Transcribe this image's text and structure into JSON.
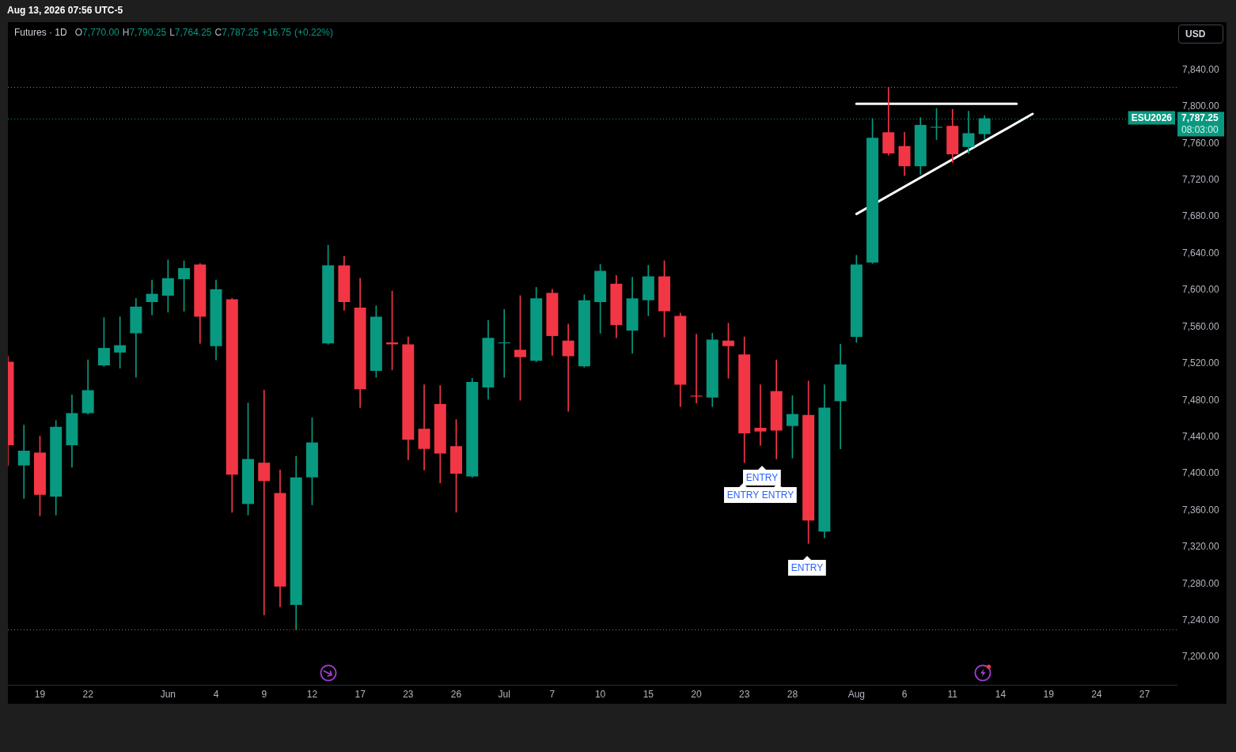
{
  "chart_data": {
    "type": "candlestick",
    "title": "Futures · 1D",
    "subtitle": "O7,770.00 H7,790.25 L7,764.25 C7,787.25 +16.75 (+0.22%)",
    "ylabel": "USD",
    "categories": [
      null,
      null,
      "19",
      null,
      null,
      "22",
      null,
      null,
      null,
      null,
      "Jun",
      null,
      null,
      "4",
      null,
      null,
      "9",
      null,
      null,
      "12",
      null,
      null,
      "17",
      null,
      null,
      "23",
      null,
      null,
      "26",
      null,
      null,
      "Jul",
      null,
      null,
      "7",
      null,
      null,
      "10",
      null,
      null,
      "15",
      null,
      null,
      "20",
      null,
      null,
      "23",
      null,
      null,
      "28",
      null,
      null,
      null,
      "Aug",
      null,
      null,
      "6",
      null,
      null,
      "11",
      null,
      null,
      "14",
      null,
      null,
      "19",
      null,
      null,
      "24",
      null,
      null,
      "27",
      null,
      null
    ],
    "series": [
      {
        "type": "candlestick",
        "ohlc": [
          [
            7522,
            7528,
            7409,
            7431
          ],
          [
            7409,
            7453,
            7373,
            7425
          ],
          [
            7423,
            7441,
            7354,
            7377
          ],
          [
            7375,
            7458,
            7355,
            7451
          ],
          [
            7431,
            7486,
            7407,
            7466
          ],
          [
            7466,
            7524,
            7465,
            7491
          ],
          [
            7518,
            7570,
            7517,
            7537
          ],
          [
            7532,
            7571,
            7515,
            7540
          ],
          [
            7553,
            7591,
            7505,
            7582
          ],
          [
            7587,
            7611,
            7573,
            7596
          ],
          [
            7594,
            7633,
            7576,
            7613
          ],
          [
            7612,
            7632,
            7577,
            7624
          ],
          [
            7628,
            7629,
            7542,
            7571
          ],
          [
            7539,
            7611,
            7524,
            7601
          ],
          [
            7590,
            7591,
            7358,
            7399
          ],
          [
            7367,
            7477,
            7355,
            7416
          ],
          [
            7412,
            7491,
            7246,
            7392
          ],
          [
            7379,
            7404,
            7255,
            7277
          ],
          [
            7257,
            7419,
            7230,
            7396
          ],
          [
            7396,
            7461,
            7366,
            7434
          ],
          [
            7542,
            7649,
            7541,
            7627
          ],
          [
            7627,
            7637,
            7578,
            7587
          ],
          [
            7581,
            7613,
            7472,
            7492
          ],
          [
            7512,
            7583,
            7505,
            7571
          ],
          [
            7543,
            7599,
            7513,
            7541
          ],
          [
            7541,
            7549,
            7415,
            7437
          ],
          [
            7449,
            7497,
            7404,
            7427
          ],
          [
            7476,
            7496,
            7390,
            7422
          ],
          [
            7430,
            7459,
            7358,
            7400
          ],
          [
            7397,
            7504,
            7396,
            7500
          ],
          [
            7494,
            7567,
            7481,
            7548
          ],
          [
            7542,
            7579,
            7505,
            7543
          ],
          [
            7535,
            7594,
            7480,
            7527
          ],
          [
            7523,
            7603,
            7522,
            7591
          ],
          [
            7597,
            7601,
            7529,
            7550
          ],
          [
            7545,
            7563,
            7468,
            7528
          ],
          [
            7517,
            7595,
            7516,
            7589
          ],
          [
            7587,
            7628,
            7553,
            7621
          ],
          [
            7607,
            7616,
            7548,
            7562
          ],
          [
            7556,
            7614,
            7531,
            7591
          ],
          [
            7589,
            7627,
            7572,
            7615
          ],
          [
            7615,
            7632,
            7549,
            7577
          ],
          [
            7572,
            7575,
            7473,
            7497
          ],
          [
            7485,
            7552,
            7477,
            7484
          ],
          [
            7483,
            7553,
            7473,
            7546
          ],
          [
            7545,
            7564,
            7504,
            7539
          ],
          [
            7530,
            7549,
            7412,
            7444
          ],
          [
            7450,
            7497,
            7431,
            7446
          ],
          [
            7490,
            7524,
            7416,
            7447
          ],
          [
            7452,
            7485,
            7417,
            7465
          ],
          [
            7464,
            7501,
            7324,
            7349
          ],
          [
            7337,
            7497,
            7330,
            7472
          ],
          [
            7479,
            7541,
            7427,
            7519
          ],
          [
            7549,
            7638,
            7543,
            7628
          ],
          [
            7630,
            7787,
            7629,
            7766
          ],
          [
            7772,
            7821,
            7747,
            7749
          ],
          [
            7757,
            7772,
            7725,
            7735
          ],
          [
            7735,
            7788,
            7726,
            7780
          ],
          [
            7777,
            7798,
            7764,
            7778
          ],
          [
            7779,
            7797,
            7739,
            7748
          ],
          [
            7756,
            7795,
            7749,
            7771
          ],
          [
            7770,
            7790.25,
            7764.25,
            7787.25
          ],
          null,
          null,
          null,
          null,
          null,
          null,
          null,
          null,
          null,
          null,
          null,
          null
        ],
        "colors": [
          "#f23645",
          "#089981",
          "#f23645",
          "#089981",
          "#089981",
          "#089981",
          "#089981",
          "#089981",
          "#089981",
          "#089981",
          "#089981",
          "#089981",
          "#f23645",
          "#089981",
          "#f23645",
          "#089981",
          "#f23645",
          "#f23645",
          "#089981",
          "#089981",
          "#089981",
          "#f23645",
          "#f23645",
          "#089981",
          "#f23645",
          "#f23645",
          "#f23645",
          "#f23645",
          "#f23645",
          "#089981",
          "#089981",
          "#089981",
          "#f23645",
          "#089981",
          "#f23645",
          "#f23645",
          "#089981",
          "#089981",
          "#f23645",
          "#089981",
          "#089981",
          "#f23645",
          "#f23645",
          "#f23645",
          "#089981",
          "#f23645",
          "#f23645",
          "#f23645",
          "#f23645",
          "#089981",
          "#f23645",
          "#089981",
          "#089981",
          "#089981",
          "#089981",
          "#f23645",
          "#f23645",
          "#089981",
          "#089981",
          "#f23645",
          "#089981",
          "#089981",
          null,
          null,
          null,
          null,
          null,
          null,
          null,
          null,
          null,
          null,
          null,
          null
        ]
      },
      {
        "type": "line",
        "values": [
          null,
          null,
          null,
          null,
          null,
          null,
          null,
          null,
          null,
          null,
          null,
          null,
          null,
          null,
          null,
          null,
          null,
          null,
          null,
          null,
          null,
          null,
          null,
          null,
          null,
          null,
          null,
          null,
          null,
          null,
          null,
          null,
          null,
          null,
          null,
          null,
          null,
          null,
          null,
          null,
          null,
          null,
          null,
          null,
          null,
          null,
          null,
          null,
          null,
          null,
          null,
          null,
          null,
          7803,
          null,
          null,
          null,
          null,
          null,
          null,
          null,
          null,
          null,
          7803,
          null,
          null,
          null,
          null,
          null,
          null,
          null,
          null,
          null,
          null
        ],
        "color": "#ffffff"
      },
      {
        "type": "line",
        "values": [
          null,
          null,
          null,
          null,
          null,
          null,
          null,
          null,
          null,
          null,
          null,
          null,
          null,
          null,
          null,
          null,
          null,
          null,
          null,
          null,
          null,
          null,
          null,
          null,
          null,
          null,
          null,
          null,
          null,
          null,
          null,
          null,
          null,
          null,
          null,
          null,
          null,
          null,
          null,
          null,
          null,
          null,
          null,
          null,
          null,
          null,
          null,
          null,
          null,
          null,
          null,
          null,
          null,
          7683,
          null,
          null,
          null,
          null,
          null,
          null,
          null,
          null,
          null,
          null,
          7792,
          null,
          null,
          null,
          null,
          null,
          null,
          null,
          null,
          null
        ],
        "color": "#ffffff"
      }
    ],
    "ylim": [
      7170,
      7892
    ],
    "yticks": [
      {
        "value": 7200,
        "label": "7,200.00"
      },
      {
        "value": 7240,
        "label": "7,240.00"
      },
      {
        "value": 7280,
        "label": "7,280.00"
      },
      {
        "value": 7320,
        "label": "7,320.00"
      },
      {
        "value": 7360,
        "label": "7,360.00"
      },
      {
        "value": 7400,
        "label": "7,400.00"
      },
      {
        "value": 7440,
        "label": "7,440.00"
      },
      {
        "value": 7480,
        "label": "7,480.00"
      },
      {
        "value": 7520,
        "label": "7,520.00"
      },
      {
        "value": 7560,
        "label": "7,560.00"
      },
      {
        "value": 7600,
        "label": "7,600.00"
      },
      {
        "value": 7640,
        "label": "7,640.00"
      },
      {
        "value": 7680,
        "label": "7,680.00"
      },
      {
        "value": 7720,
        "label": "7,720.00"
      },
      {
        "value": 7760,
        "label": "7,760.00"
      },
      {
        "value": 7800,
        "label": "7,800.00"
      },
      {
        "value": 7840,
        "label": "7,840.00"
      }
    ],
    "ref_lines": [
      {
        "axis": "y",
        "value": 7821,
        "color": "#787b86",
        "line_style": "dotted"
      },
      {
        "axis": "y",
        "value": 7230,
        "color": "#787b86",
        "line_style": "dotted"
      },
      {
        "axis": "y",
        "value": 7787.25,
        "label": "ESU2026",
        "color": "#089981",
        "line_style": "dotted"
      }
    ],
    "annotations": [
      "Aug 13, 2026 07:56 UTC-5",
      "ENTRY",
      "ENTRY",
      "ENTRY",
      "ENTRY",
      "7,787.25",
      "08:03:00"
    ]
  }
}
